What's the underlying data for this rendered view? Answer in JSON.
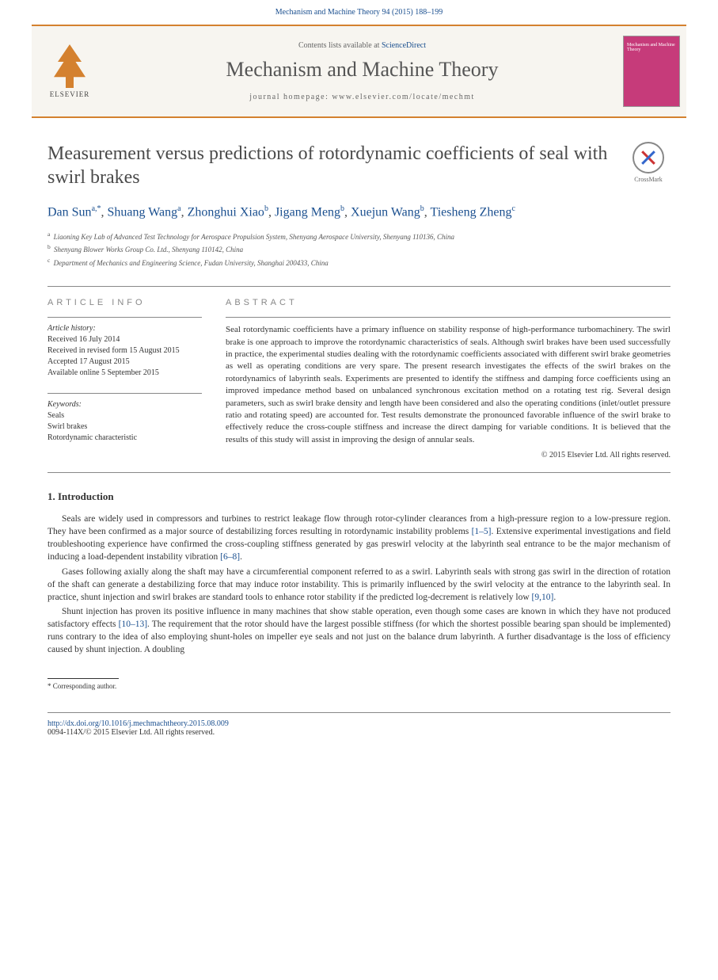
{
  "citation": {
    "journal_link": "Mechanism and Machine Theory",
    "vol_pages": " 94 (2015) 188–199"
  },
  "header": {
    "publisher": "ELSEVIER",
    "contents_prefix": "Contents lists available at ",
    "contents_link": "ScienceDirect",
    "journal_name": "Mechanism and Machine Theory",
    "homepage_label": "journal homepage: ",
    "homepage_url": "www.elsevier.com/locate/mechmt",
    "cover_label": "Mechanism and Machine Theory"
  },
  "article": {
    "title": "Measurement versus predictions of rotordynamic coefficients of seal with swirl brakes",
    "crossmark_label": "CrossMark"
  },
  "authors": {
    "a1_name": "Dan Sun",
    "a1_aff": "a,",
    "a1_star": "*",
    "a2_name": "Shuang Wang",
    "a2_aff": "a",
    "a3_name": "Zhonghui Xiao",
    "a3_aff": "b",
    "a4_name": "Jigang Meng",
    "a4_aff": "b",
    "a5_name": "Xuejun Wang",
    "a5_aff": "b",
    "a6_name": "Tiesheng Zheng",
    "a6_aff": "c"
  },
  "affiliations": {
    "a": "Liaoning Key Lab of Advanced Test Technology for Aerospace Propulsion System, Shenyang Aerospace University, Shenyang 110136, China",
    "b": "Shenyang Blower Works Group Co. Ltd., Shenyang 110142, China",
    "c": "Department of Mechanics and Engineering Science, Fudan University, Shanghai 200433, China"
  },
  "article_info": {
    "heading": "ARTICLE INFO",
    "history_label": "Article history:",
    "received": "Received 16 July 2014",
    "revised": "Received in revised form 15 August 2015",
    "accepted": "Accepted 17 August 2015",
    "online": "Available online 5 September 2015",
    "keywords_label": "Keywords:",
    "kw1": "Seals",
    "kw2": "Swirl brakes",
    "kw3": "Rotordynamic characteristic"
  },
  "abstract": {
    "heading": "ABSTRACT",
    "text": "Seal rotordynamic coefficients have a primary influence on stability response of high-performance turbomachinery. The swirl brake is one approach to improve the rotordynamic characteristics of seals. Although swirl brakes have been used successfully in practice, the experimental studies dealing with the rotordynamic coefficients associated with different swirl brake geometries as well as operating conditions are very spare. The present research investigates the effects of the swirl brakes on the rotordynamics of labyrinth seals. Experiments are presented to identify the stiffness and damping force coefficients using an improved impedance method based on unbalanced synchronous excitation method on a rotating test rig. Several design parameters, such as swirl brake density and length have been considered and also the operating conditions (inlet/outlet pressure ratio and rotating speed) are accounted for. Test results demonstrate the pronounced favorable influence of the swirl brake to effectively reduce the cross-couple stiffness and increase the direct damping for variable conditions. It is believed that the results of this study will assist in improving the design of annular seals.",
    "copyright": "© 2015 Elsevier Ltd. All rights reserved."
  },
  "introduction": {
    "heading": "1. Introduction",
    "p1_a": "Seals are widely used in compressors and turbines to restrict leakage flow through rotor-cylinder clearances from a high-pressure region to a low-pressure region. They have been confirmed as a major source of destabilizing forces resulting in rotordynamic instability problems ",
    "p1_ref1": "[1–5]",
    "p1_b": ". Extensive experimental investigations and field troubleshooting experience have confirmed the cross-coupling stiffness generated by gas preswirl velocity at the labyrinth seal entrance to be the major mechanism of inducing a load-dependent instability vibration ",
    "p1_ref2": "[6–8]",
    "p1_c": ".",
    "p2_a": "Gases following axially along the shaft may have a circumferential component referred to as a swirl. Labyrinth seals with strong gas swirl in the direction of rotation of the shaft can generate a destabilizing force that may induce rotor instability. This is primarily influenced by the swirl velocity at the entrance to the labyrinth seal. In practice, shunt injection and swirl brakes are standard tools to enhance rotor stability if the predicted log-decrement is relatively low ",
    "p2_ref1": "[9,10]",
    "p2_b": ".",
    "p3_a": "Shunt injection has proven its positive influence in many machines that show stable operation, even though some cases are known in which they have not produced satisfactory effects ",
    "p3_ref1": "[10–13]",
    "p3_b": ". The requirement that the rotor should have the largest possible stiffness (for which the shortest possible bearing span should be implemented) runs contrary to the idea of also employing shunt-holes on impeller eye seals and not just on the balance drum labyrinth. A further disadvantage is the loss of efficiency caused by shunt injection. A doubling"
  },
  "footnote": {
    "corresponding": "* Corresponding author."
  },
  "footer": {
    "doi": "http://dx.doi.org/10.1016/j.mechmachtheory.2015.08.009",
    "issn_copy": "0094-114X/© 2015 Elsevier Ltd. All rights reserved."
  },
  "colors": {
    "accent_orange": "#d4812f",
    "link_blue": "#1a4f8f",
    "cover_pink": "#c63b7a"
  }
}
